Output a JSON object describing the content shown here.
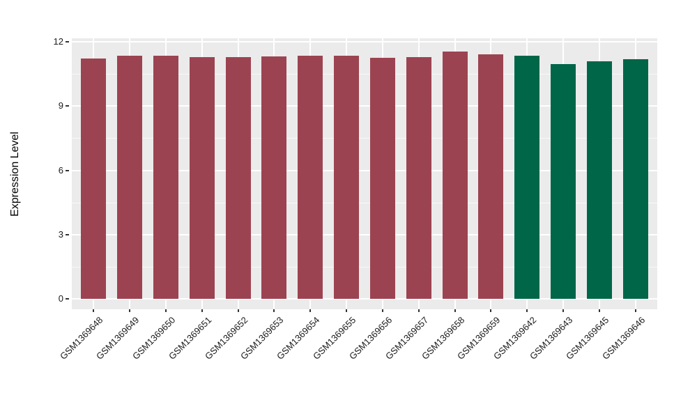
{
  "style": {
    "background": "#FFFFFF",
    "panel_background": "#EBEBEB",
    "grid_color": "#FFFFFF",
    "axis_text_color": "#1A1A1A",
    "tick_mark_color": "#333333",
    "group1_color": "#9C4351",
    "group2_color": "#006648"
  },
  "chart_data": {
    "type": "bar",
    "title": "",
    "xlabel": "",
    "ylabel": "Expression Level",
    "categories": [
      "GSM1369648",
      "GSM1369649",
      "GSM1369650",
      "GSM1369651",
      "GSM1369652",
      "GSM1369653",
      "GSM1369654",
      "GSM1369655",
      "GSM1369656",
      "GSM1369657",
      "GSM1369658",
      "GSM1369659",
      "GSM1369642",
      "GSM1369643",
      "GSM1369645",
      "GSM1369646"
    ],
    "values": [
      11.21,
      11.36,
      11.36,
      11.27,
      11.28,
      11.32,
      11.35,
      11.35,
      11.24,
      11.29,
      11.54,
      11.42,
      11.35,
      10.97,
      11.09,
      11.19
    ],
    "bar_colors": [
      "#9C4351",
      "#9C4351",
      "#9C4351",
      "#9C4351",
      "#9C4351",
      "#9C4351",
      "#9C4351",
      "#9C4351",
      "#9C4351",
      "#9C4351",
      "#9C4351",
      "#9C4351",
      "#006648",
      "#006648",
      "#006648",
      "#006648"
    ],
    "yticks": [
      0,
      3,
      6,
      9,
      12
    ],
    "yticks_minor": [
      1.5,
      4.5,
      7.5,
      10.5
    ],
    "ylim": [
      0,
      12.2
    ],
    "grid": true,
    "legend": false
  }
}
